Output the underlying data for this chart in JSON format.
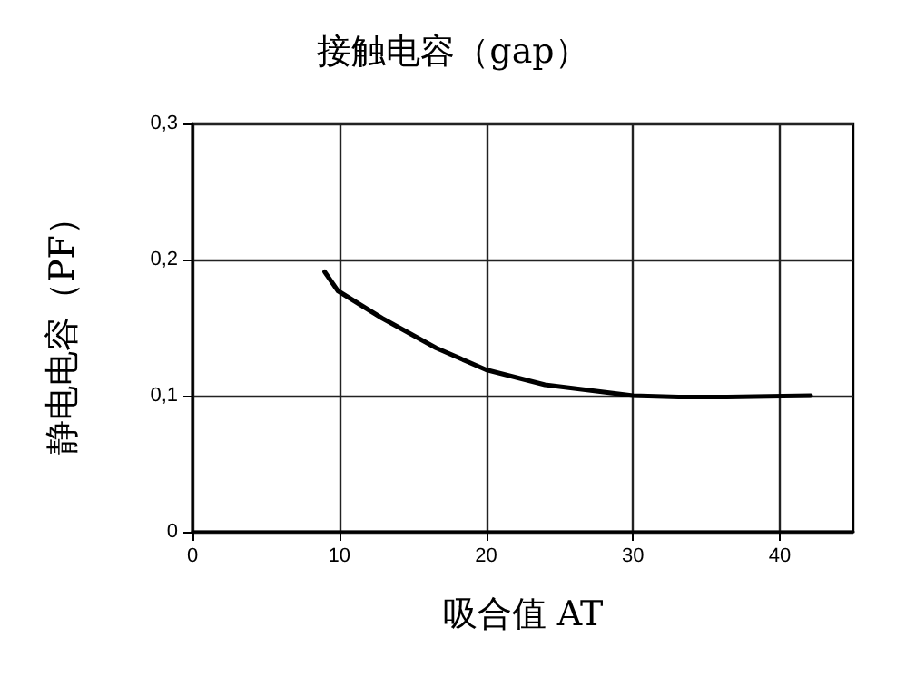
{
  "chart_data": {
    "type": "line",
    "title": "接触电容（gap）",
    "xlabel": "吸合值 AT",
    "ylabel": "静电电容（PF）",
    "x": [
      9.0,
      9.9,
      12.9,
      16.6,
      20,
      24,
      30,
      33.1,
      36.4,
      42.1
    ],
    "series": [
      {
        "color": "#000000",
        "values": [
          0.191,
          0.177,
          0.157,
          0.135,
          0.119,
          0.108,
          0.1,
          0.099,
          0.099,
          0.1
        ]
      }
    ],
    "xlim": [
      0,
      45
    ],
    "xticks": [
      0,
      10,
      20,
      30,
      40
    ],
    "ylim": [
      0,
      0.3
    ],
    "yticks": [
      {
        "value": 0,
        "label": "0"
      },
      {
        "value": 0.1,
        "label": "0,1"
      },
      {
        "value": 0.2,
        "label": "0,2"
      },
      {
        "value": 0.3,
        "label": "0,3"
      }
    ],
    "grid": true,
    "marker": "none",
    "line_style": "solid"
  }
}
